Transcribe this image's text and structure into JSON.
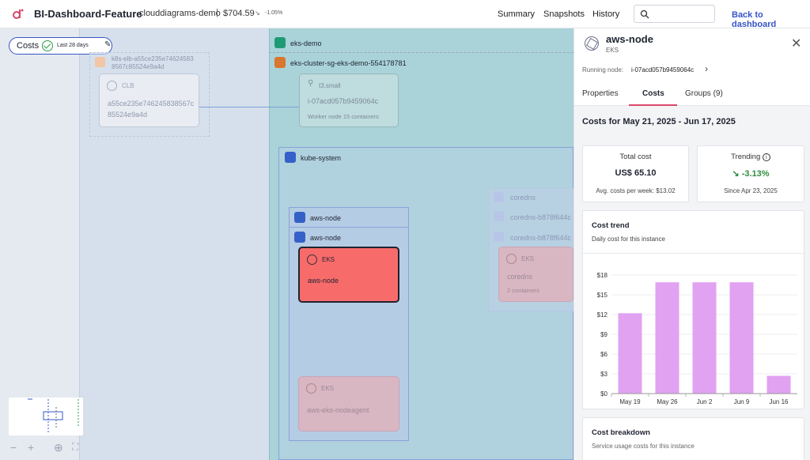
{
  "topbar": {
    "app_title": "BI-Dashboard-Feature",
    "project": "clouddiagrams-demo",
    "separator": "|",
    "cost": "$704.59",
    "cost_change": "-1.05%",
    "nav": [
      "Summary",
      "Snapshots",
      "History"
    ],
    "search_placeholder": "",
    "back_label": "Back to dashboard"
  },
  "filter": {
    "label": "Costs",
    "range": "Last 28 days"
  },
  "diagram": {
    "eks_demo": "eks-demo",
    "cluster_sg": "eks-cluster-sg-eks-demo-554178781",
    "elb_name": "k8s-elb-a55ce235e74624583 8567c85524e9a4d",
    "clb_type": "CLB",
    "clb_name": "a55ce235e746245838567c85524e9a4d",
    "ec2_type": "t3.small",
    "ec2_name": "i-07acd057b9459064c",
    "ec2_sub": "Worker node 15 containers",
    "kube_system": "kube-system",
    "aws_node_1": "aws-node",
    "aws_node_2": "aws-node",
    "eks_hot_type": "EKS",
    "eks_hot_name": "aws-node",
    "eks_agent_type": "EKS",
    "eks_agent_name": "aws-eks-nodeagent",
    "coredns": "coredns",
    "coredns_rs1": "coredns-b878f644c",
    "coredns_rs2": "coredns-b878f644c",
    "coredns_card_type": "EKS",
    "coredns_card_name": "coredns",
    "coredns_card_sub": "2 containers"
  },
  "panel": {
    "title": "aws-node",
    "subtitle": "EKS",
    "running_label": "Running node:",
    "running_value": "i-07acd057b9459064c",
    "tabs": [
      "Properties",
      "Costs",
      "Groups (9)"
    ],
    "active_tab": "Costs",
    "period": "Costs for May 21, 2025 - Jun 17, 2025",
    "total_cost": {
      "label": "Total cost",
      "value": "US$ 65.10",
      "footer": "Avg. costs per week:  $13.02"
    },
    "trending": {
      "label": "Trending",
      "value": "-3.13%",
      "footer": "Since Apr 23, 2025"
    },
    "chart_title": "Cost trend",
    "chart_subtitle": "Daily cost for this instance",
    "breakdown_title": "Cost breakdown",
    "breakdown_subtitle": "Service usage costs for this instance"
  },
  "colors": {
    "accent": "#3755c8",
    "bar": "#e1a2f2",
    "hot": "#f86b6b",
    "trend_down": "#2e8c3c",
    "tab_active": "#d9466a"
  },
  "chart_data": {
    "type": "bar",
    "categories": [
      "May 19",
      "May 26",
      "Jun 2",
      "Jun 9",
      "Jun 16"
    ],
    "values": [
      12.2,
      16.9,
      16.9,
      16.9,
      2.7
    ],
    "yticks": [
      "$0",
      "$3",
      "$6",
      "$9",
      "$12",
      "$15",
      "$18"
    ],
    "ylim": [
      0,
      18
    ],
    "grid": true
  }
}
